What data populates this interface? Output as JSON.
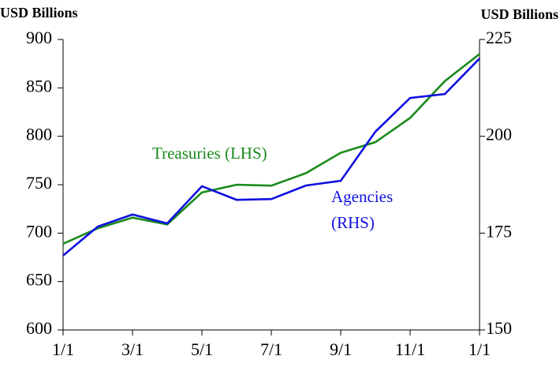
{
  "chart_data": {
    "type": "line",
    "y_label": "USD Billions",
    "y2_label": "USD Billions",
    "categories": [
      "1/1",
      null,
      "3/1",
      null,
      "5/1",
      null,
      "7/1",
      null,
      "9/1",
      null,
      "11/1",
      null,
      "1/1"
    ],
    "series": [
      {
        "name": "Treasuries (LHS)",
        "color": "#1a8a1a",
        "values": [
          689,
          705,
          716,
          709,
          742,
          750,
          749,
          762,
          783,
          794,
          819,
          857,
          885
        ]
      },
      {
        "name": "Agencies (RHS)",
        "color": "#1010e0",
        "axis": "y2",
        "values": [
          169.2,
          176.7,
          179.8,
          177.5,
          187.1,
          183.6,
          183.8,
          187.3,
          188.5,
          201.2,
          209.9,
          210.9,
          220.1
        ]
      }
    ],
    "ylim": [
      600,
      900
    ],
    "yticks": [
      600,
      650,
      700,
      750,
      800,
      850,
      900
    ],
    "y2lim": [
      150,
      225
    ],
    "y2ticks": [
      150,
      175,
      200,
      225
    ],
    "grid": false
  }
}
